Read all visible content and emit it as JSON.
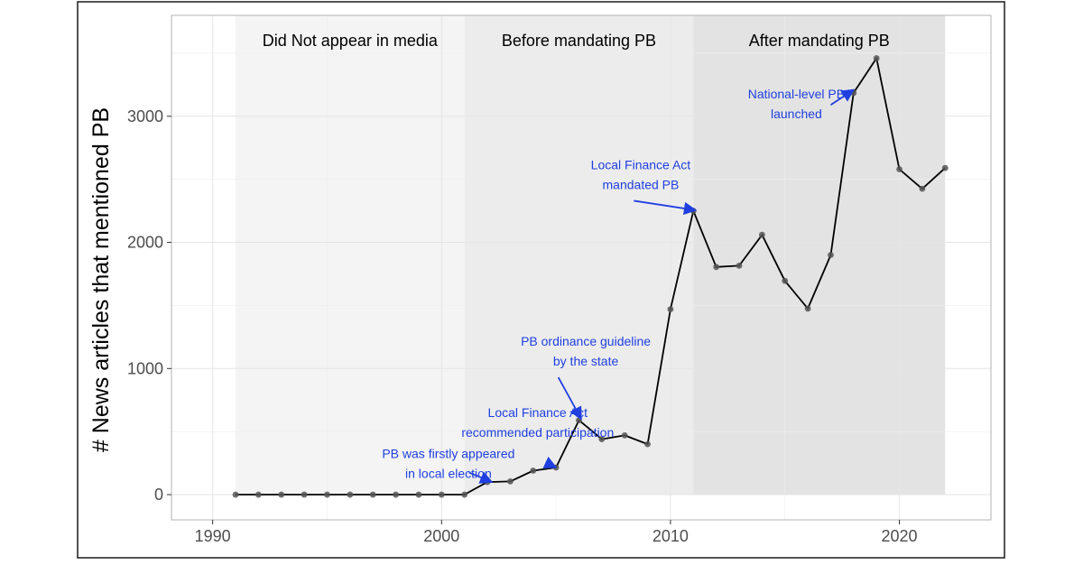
{
  "chart_data": {
    "type": "line",
    "title": "",
    "xlabel": "",
    "ylabel": "# News articles that mentioned PB",
    "xlim": [
      1988.2,
      2024.0
    ],
    "ylim": [
      -200,
      3800
    ],
    "x_ticks": [
      1990,
      2000,
      2010,
      2020
    ],
    "x_tick_labels": [
      "1990",
      "2000",
      "2010",
      "2020"
    ],
    "y_ticks": [
      0,
      1000,
      2000,
      3000
    ],
    "y_tick_labels": [
      "0",
      "1000",
      "2000",
      "3000"
    ],
    "grid": true,
    "legend": "none",
    "colors": {
      "line": "#000000",
      "point": "#555555",
      "annotation": "#1f3fe0",
      "panel_bg": "#ffffff",
      "grid": "#e5e5e5",
      "border": "#b3b3b3"
    },
    "regions": [
      {
        "label": "Did Not appear in media",
        "x_start": 1991,
        "x_end": 2001,
        "color": "#f4f4f4"
      },
      {
        "label": "Before mandating PB",
        "x_start": 2001,
        "x_end": 2011,
        "color": "#ececec"
      },
      {
        "label": "After mandating PB",
        "x_start": 2011,
        "x_end": 2022,
        "color": "#e3e3e3"
      }
    ],
    "x": [
      1991,
      1992,
      1993,
      1994,
      1995,
      1996,
      1997,
      1998,
      1999,
      2000,
      2001,
      2002,
      2003,
      2004,
      2005,
      2006,
      2007,
      2008,
      2009,
      2010,
      2011,
      2012,
      2013,
      2014,
      2015,
      2016,
      2017,
      2018,
      2019,
      2020,
      2021,
      2022
    ],
    "values": [
      0,
      0,
      0,
      0,
      0,
      0,
      0,
      0,
      0,
      0,
      0,
      100,
      105,
      190,
      215,
      590,
      440,
      470,
      400,
      1470,
      2250,
      1805,
      1815,
      2060,
      1695,
      1475,
      1900,
      3185,
      3460,
      2580,
      2425,
      2590
    ],
    "annotations": [
      {
        "lines": [
          "PB was firstly appeared",
          "in local election"
        ],
        "text_x": 2000.3,
        "text_y": 290,
        "arrow_from": [
          2001.2,
          175
        ],
        "arrow_to": [
          2002.2,
          100
        ]
      },
      {
        "lines": [
          "Local Finance Act",
          "recommended participation"
        ],
        "text_x": 2004.2,
        "text_y": 615,
        "arrow_from": [
          2004.6,
          250
        ],
        "arrow_to": [
          2005.0,
          215
        ]
      },
      {
        "lines": [
          "PB ordinance guideline",
          "by the state"
        ],
        "text_x": 2006.3,
        "text_y": 1180,
        "arrow_from": [
          2005.1,
          930
        ],
        "arrow_to": [
          2006.1,
          600
        ]
      },
      {
        "lines": [
          "Local Finance Act",
          "mandated PB"
        ],
        "text_x": 2008.7,
        "text_y": 2580,
        "arrow_from": [
          2008.4,
          2330
        ],
        "arrow_to": [
          2011.1,
          2255
        ]
      },
      {
        "lines": [
          "National-level PB",
          "launched"
        ],
        "text_x": 2015.5,
        "text_y": 3140,
        "arrow_from": [
          2017.0,
          3090
        ],
        "arrow_to": [
          2018.0,
          3210
        ]
      }
    ]
  }
}
